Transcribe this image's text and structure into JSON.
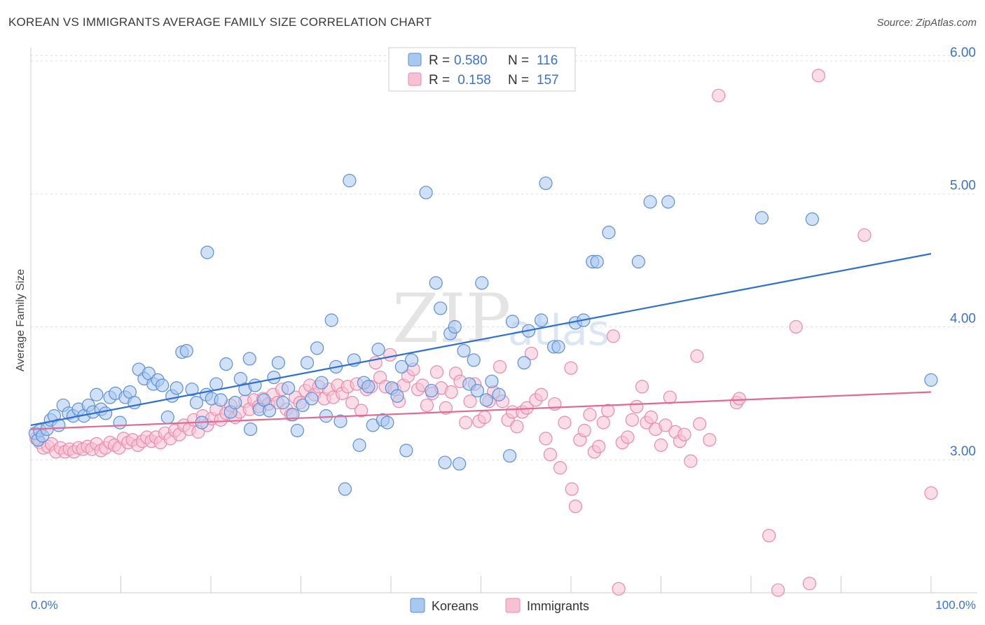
{
  "title": "KOREAN VS IMMIGRANTS AVERAGE FAMILY SIZE CORRELATION CHART",
  "source": "Source: ZipAtlas.com",
  "watermark": {
    "zip": "ZIP",
    "atlas": "atlas"
  },
  "colors": {
    "koreans_fill": "#a9c8f0",
    "koreans_stroke": "#5b8fd6",
    "koreans_line": "#2f6fd0",
    "immigrants_fill": "#f6c1d2",
    "immigrants_stroke": "#e88aaa",
    "immigrants_line": "#e06a93",
    "tick_text": "#3b73c9",
    "grid": "#dddddd"
  },
  "legend": {
    "rows": [
      {
        "r_label": "R =",
        "r_value": "0.580",
        "n_label": "N =",
        "n_value": "116"
      },
      {
        "r_label": "R =",
        "r_value": " 0.158",
        "n_label": "N =",
        "n_value": "157"
      }
    ]
  },
  "bottom_legend": [
    "Koreans",
    "Immigrants"
  ],
  "chart_data": {
    "type": "scatter",
    "title": "KOREAN VS IMMIGRANTS AVERAGE FAMILY SIZE CORRELATION CHART",
    "xlabel": "",
    "ylabel": "Average Family Size",
    "xlim": [
      0,
      100
    ],
    "ylim": [
      2.0,
      6.1
    ],
    "x_tick_labels": [
      "0.0%",
      "100.0%"
    ],
    "y_ticks": [
      3.0,
      4.0,
      5.0,
      6.0
    ],
    "y_tick_labels": [
      "3.00",
      "4.00",
      "5.00",
      "6.00"
    ],
    "grid": true,
    "legend_position": "top-center",
    "series": [
      {
        "name": "Koreans",
        "trend": [
          [
            0,
            3.26
          ],
          [
            100,
            4.55
          ]
        ],
        "points": [
          [
            0.5,
            3.2
          ],
          [
            0.8,
            3.15
          ],
          [
            1.0,
            3.22
          ],
          [
            1.3,
            3.18
          ],
          [
            1.8,
            3.23
          ],
          [
            2.2,
            3.3
          ],
          [
            2.6,
            3.33
          ],
          [
            3.1,
            3.26
          ],
          [
            3.6,
            3.41
          ],
          [
            4.2,
            3.35
          ],
          [
            4.7,
            3.33
          ],
          [
            5.3,
            3.38
          ],
          [
            5.9,
            3.33
          ],
          [
            6.4,
            3.41
          ],
          [
            6.9,
            3.36
          ],
          [
            7.3,
            3.49
          ],
          [
            7.8,
            3.38
          ],
          [
            8.3,
            3.35
          ],
          [
            8.8,
            3.47
          ],
          [
            9.4,
            3.5
          ],
          [
            9.9,
            3.28
          ],
          [
            10.5,
            3.47
          ],
          [
            11.0,
            3.51
          ],
          [
            11.5,
            3.43
          ],
          [
            12.0,
            3.68
          ],
          [
            12.6,
            3.61
          ],
          [
            13.1,
            3.65
          ],
          [
            13.6,
            3.57
          ],
          [
            14.1,
            3.6
          ],
          [
            14.6,
            3.56
          ],
          [
            15.2,
            3.32
          ],
          [
            15.7,
            3.48
          ],
          [
            16.2,
            3.54
          ],
          [
            16.8,
            3.81
          ],
          [
            17.3,
            3.82
          ],
          [
            17.9,
            3.53
          ],
          [
            18.4,
            3.43
          ],
          [
            19.0,
            3.28
          ],
          [
            19.5,
            3.49
          ],
          [
            19.6,
            4.56
          ],
          [
            20.1,
            3.46
          ],
          [
            20.6,
            3.57
          ],
          [
            21.1,
            3.45
          ],
          [
            21.7,
            3.72
          ],
          [
            22.2,
            3.36
          ],
          [
            22.7,
            3.43
          ],
          [
            23.3,
            3.61
          ],
          [
            23.8,
            3.53
          ],
          [
            24.3,
            3.76
          ],
          [
            24.4,
            3.23
          ],
          [
            24.9,
            3.56
          ],
          [
            25.4,
            3.38
          ],
          [
            25.9,
            3.45
          ],
          [
            26.5,
            3.37
          ],
          [
            27.0,
            3.62
          ],
          [
            27.5,
            3.73
          ],
          [
            28.0,
            3.43
          ],
          [
            28.6,
            3.54
          ],
          [
            29.1,
            3.34
          ],
          [
            29.6,
            3.22
          ],
          [
            30.2,
            3.41
          ],
          [
            30.7,
            3.73
          ],
          [
            31.2,
            3.46
          ],
          [
            31.8,
            3.84
          ],
          [
            32.3,
            3.58
          ],
          [
            32.8,
            3.33
          ],
          [
            33.4,
            4.05
          ],
          [
            33.9,
            3.7
          ],
          [
            34.4,
            3.29
          ],
          [
            34.9,
            2.78
          ],
          [
            35.4,
            5.1
          ],
          [
            35.9,
            3.75
          ],
          [
            36.5,
            3.11
          ],
          [
            37.0,
            3.58
          ],
          [
            37.5,
            3.55
          ],
          [
            38.0,
            3.26
          ],
          [
            38.6,
            3.83
          ],
          [
            39.1,
            3.3
          ],
          [
            39.6,
            3.28
          ],
          [
            40.1,
            3.54
          ],
          [
            40.7,
            3.48
          ],
          [
            41.2,
            3.7
          ],
          [
            41.7,
            3.07
          ],
          [
            42.3,
            3.75
          ],
          [
            43.9,
            5.01
          ],
          [
            44.5,
            3.52
          ],
          [
            45.0,
            4.33
          ],
          [
            45.5,
            4.14
          ],
          [
            46.0,
            2.98
          ],
          [
            46.6,
            3.95
          ],
          [
            47.1,
            4.0
          ],
          [
            47.6,
            2.97
          ],
          [
            48.1,
            3.82
          ],
          [
            48.7,
            3.57
          ],
          [
            49.2,
            3.75
          ],
          [
            49.6,
            3.52
          ],
          [
            50.1,
            4.33
          ],
          [
            50.6,
            3.45
          ],
          [
            51.2,
            3.59
          ],
          [
            52.0,
            3.49
          ],
          [
            53.5,
            4.04
          ],
          [
            53.2,
            3.03
          ],
          [
            54.8,
            3.73
          ],
          [
            55.3,
            3.97
          ],
          [
            56.7,
            4.05
          ],
          [
            57.2,
            5.08
          ],
          [
            58.1,
            3.85
          ],
          [
            58.6,
            3.85
          ],
          [
            60.5,
            4.03
          ],
          [
            61.4,
            4.05
          ],
          [
            62.4,
            4.49
          ],
          [
            62.9,
            4.49
          ],
          [
            64.2,
            4.71
          ],
          [
            67.5,
            4.49
          ],
          [
            68.8,
            4.94
          ],
          [
            70.8,
            4.94
          ],
          [
            81.2,
            4.82
          ],
          [
            86.8,
            4.81
          ],
          [
            100.0,
            3.6
          ]
        ]
      },
      {
        "name": "Immigrants",
        "trend": [
          [
            0,
            3.23
          ],
          [
            100,
            3.51
          ]
        ],
        "points": [
          [
            0.6,
            3.16
          ],
          [
            1.0,
            3.13
          ],
          [
            1.4,
            3.09
          ],
          [
            1.9,
            3.1
          ],
          [
            2.3,
            3.12
          ],
          [
            2.8,
            3.06
          ],
          [
            3.3,
            3.09
          ],
          [
            3.8,
            3.06
          ],
          [
            4.3,
            3.08
          ],
          [
            4.8,
            3.06
          ],
          [
            5.3,
            3.09
          ],
          [
            5.8,
            3.08
          ],
          [
            6.3,
            3.1
          ],
          [
            6.8,
            3.08
          ],
          [
            7.3,
            3.12
          ],
          [
            7.8,
            3.07
          ],
          [
            8.3,
            3.09
          ],
          [
            8.8,
            3.13
          ],
          [
            9.3,
            3.11
          ],
          [
            9.8,
            3.09
          ],
          [
            10.3,
            3.16
          ],
          [
            10.8,
            3.13
          ],
          [
            11.3,
            3.15
          ],
          [
            11.9,
            3.11
          ],
          [
            12.4,
            3.14
          ],
          [
            12.9,
            3.17
          ],
          [
            13.4,
            3.14
          ],
          [
            13.9,
            3.17
          ],
          [
            14.4,
            3.13
          ],
          [
            14.9,
            3.2
          ],
          [
            15.5,
            3.16
          ],
          [
            16.0,
            3.22
          ],
          [
            16.5,
            3.19
          ],
          [
            17.0,
            3.26
          ],
          [
            17.6,
            3.23
          ],
          [
            18.1,
            3.3
          ],
          [
            18.6,
            3.21
          ],
          [
            19.1,
            3.33
          ],
          [
            19.6,
            3.26
          ],
          [
            20.1,
            3.31
          ],
          [
            20.6,
            3.38
          ],
          [
            21.1,
            3.3
          ],
          [
            21.7,
            3.35
          ],
          [
            22.2,
            3.41
          ],
          [
            22.7,
            3.32
          ],
          [
            23.2,
            3.36
          ],
          [
            23.8,
            3.44
          ],
          [
            24.3,
            3.38
          ],
          [
            24.8,
            3.45
          ],
          [
            25.3,
            3.4
          ],
          [
            25.8,
            3.46
          ],
          [
            26.4,
            3.42
          ],
          [
            26.9,
            3.49
          ],
          [
            27.4,
            3.43
          ],
          [
            27.9,
            3.53
          ],
          [
            28.4,
            3.38
          ],
          [
            28.9,
            3.34
          ],
          [
            29.4,
            3.47
          ],
          [
            29.9,
            3.43
          ],
          [
            30.5,
            3.52
          ],
          [
            31.0,
            3.56
          ],
          [
            31.5,
            3.49
          ],
          [
            32.0,
            3.55
          ],
          [
            32.6,
            3.46
          ],
          [
            33.1,
            3.53
          ],
          [
            33.6,
            3.47
          ],
          [
            34.1,
            3.56
          ],
          [
            34.6,
            3.5
          ],
          [
            35.2,
            3.55
          ],
          [
            35.7,
            3.43
          ],
          [
            36.2,
            3.57
          ],
          [
            36.7,
            3.37
          ],
          [
            37.3,
            3.53
          ],
          [
            37.8,
            3.55
          ],
          [
            38.3,
            3.73
          ],
          [
            38.8,
            3.62
          ],
          [
            39.4,
            3.55
          ],
          [
            39.9,
            3.79
          ],
          [
            40.4,
            3.53
          ],
          [
            40.9,
            3.44
          ],
          [
            41.4,
            3.56
          ],
          [
            41.9,
            3.63
          ],
          [
            42.5,
            3.68
          ],
          [
            43.0,
            3.53
          ],
          [
            43.5,
            3.56
          ],
          [
            44.0,
            3.41
          ],
          [
            44.6,
            3.5
          ],
          [
            45.1,
            3.66
          ],
          [
            45.6,
            3.54
          ],
          [
            46.1,
            3.39
          ],
          [
            46.7,
            3.51
          ],
          [
            47.2,
            3.65
          ],
          [
            47.7,
            3.59
          ],
          [
            48.3,
            3.28
          ],
          [
            48.8,
            3.44
          ],
          [
            49.3,
            3.57
          ],
          [
            49.8,
            3.29
          ],
          [
            50.4,
            3.32
          ],
          [
            50.9,
            3.44
          ],
          [
            51.4,
            3.51
          ],
          [
            52.1,
            3.7
          ],
          [
            52.4,
            3.44
          ],
          [
            53.0,
            3.3
          ],
          [
            53.5,
            3.36
          ],
          [
            54.0,
            3.25
          ],
          [
            54.6,
            3.36
          ],
          [
            55.1,
            3.39
          ],
          [
            55.6,
            3.8
          ],
          [
            56.1,
            3.45
          ],
          [
            56.7,
            3.49
          ],
          [
            57.2,
            3.16
          ],
          [
            57.7,
            3.04
          ],
          [
            58.2,
            3.42
          ],
          [
            58.8,
            2.94
          ],
          [
            59.3,
            3.28
          ],
          [
            60.0,
            3.69
          ],
          [
            60.1,
            2.78
          ],
          [
            60.5,
            2.65
          ],
          [
            61.0,
            3.15
          ],
          [
            61.5,
            3.22
          ],
          [
            62.1,
            3.34
          ],
          [
            62.6,
            3.06
          ],
          [
            63.1,
            3.1
          ],
          [
            63.6,
            3.28
          ],
          [
            64.1,
            3.37
          ],
          [
            64.7,
            3.93
          ],
          [
            65.3,
            2.03
          ],
          [
            65.7,
            3.13
          ],
          [
            66.3,
            3.17
          ],
          [
            66.8,
            3.3
          ],
          [
            67.3,
            3.4
          ],
          [
            67.9,
            3.55
          ],
          [
            68.4,
            3.28
          ],
          [
            68.9,
            3.32
          ],
          [
            69.4,
            3.23
          ],
          [
            70.0,
            3.11
          ],
          [
            70.5,
            3.26
          ],
          [
            71.0,
            3.47
          ],
          [
            71.6,
            3.21
          ],
          [
            72.1,
            3.14
          ],
          [
            72.6,
            3.19
          ],
          [
            73.3,
            2.99
          ],
          [
            74.0,
            3.78
          ],
          [
            74.3,
            3.27
          ],
          [
            75.4,
            3.15
          ],
          [
            76.4,
            5.74
          ],
          [
            78.4,
            3.43
          ],
          [
            78.7,
            3.46
          ],
          [
            82.0,
            2.43
          ],
          [
            83.0,
            2.02
          ],
          [
            85.0,
            4.0
          ],
          [
            86.5,
            2.07
          ],
          [
            87.5,
            5.89
          ],
          [
            92.6,
            4.69
          ],
          [
            100.0,
            2.75
          ]
        ]
      }
    ]
  }
}
